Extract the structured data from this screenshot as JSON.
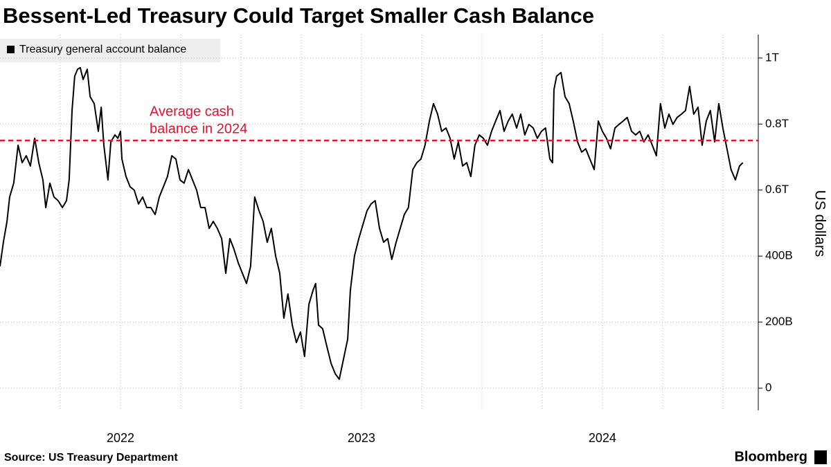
{
  "chart_data": {
    "type": "line",
    "title": "Bessent-Led Treasury Could Target Smaller Cash Balance",
    "source": "Source: US Treasury Department",
    "brand": "Bloomberg",
    "y_label": "US dollars",
    "xlim": [
      2022,
      2025.147
    ],
    "xticks": [
      {
        "value": 2022.5,
        "label": "2022"
      },
      {
        "value": 2023.5,
        "label": "2023"
      },
      {
        "value": 2024.5,
        "label": "2024"
      }
    ],
    "xgrid": [
      2022.25,
      2022.5,
      2022.75,
      2023,
      2023.25,
      2023.5,
      2023.75,
      2024,
      2024.25,
      2024.5,
      2024.75,
      2025
    ],
    "ylim": [
      -67,
      1071
    ],
    "yticks": [
      0,
      {
        "value": 200,
        "label": "200B"
      },
      {
        "value": 400,
        "label": "400B"
      },
      {
        "value": 600,
        "label": "0.6T"
      },
      {
        "value": 800,
        "label": "0.8T"
      },
      {
        "value": 1000,
        "label": "1T"
      }
    ],
    "grid": true,
    "reference": {
      "value": 750,
      "label": [
        "Average cash",
        "balance in 2024"
      ],
      "color": "#e8112d"
    },
    "x": [
      2022.0,
      2022.014,
      2022.029,
      2022.04,
      2022.057,
      2022.075,
      2022.092,
      2022.109,
      2022.126,
      2022.144,
      2022.161,
      2022.178,
      2022.19,
      2022.207,
      2022.224,
      2022.241,
      2022.259,
      2022.276,
      2022.287,
      2022.299,
      2022.31,
      2022.322,
      2022.333,
      2022.345,
      2022.362,
      2022.374,
      2022.391,
      2022.408,
      2022.42,
      2022.431,
      2022.448,
      2022.46,
      2022.477,
      2022.489,
      2022.5,
      2022.506,
      2022.523,
      2022.54,
      2022.557,
      2022.575,
      2022.592,
      2022.609,
      2022.626,
      2022.644,
      2022.661,
      2022.678,
      2022.695,
      2022.713,
      2022.73,
      2022.747,
      2022.764,
      2022.782,
      2022.799,
      2022.816,
      2022.833,
      2022.851,
      2022.868,
      2022.885,
      2022.902,
      2022.92,
      2022.937,
      2022.954,
      2022.971,
      2022.989,
      2023.006,
      2023.023,
      2023.04,
      2023.057,
      2023.075,
      2023.092,
      2023.109,
      2023.126,
      2023.144,
      2023.161,
      2023.178,
      2023.195,
      2023.213,
      2023.23,
      2023.247,
      2023.264,
      2023.282,
      2023.299,
      2023.31,
      2023.322,
      2023.339,
      2023.356,
      2023.374,
      2023.391,
      2023.408,
      2023.425,
      2023.443,
      2023.454,
      2023.471,
      2023.489,
      2023.506,
      2023.523,
      2023.54,
      2023.557,
      2023.575,
      2023.592,
      2023.609,
      2023.626,
      2023.644,
      2023.661,
      2023.678,
      2023.695,
      2023.713,
      2023.73,
      2023.747,
      2023.764,
      2023.782,
      2023.799,
      2023.816,
      2023.833,
      2023.851,
      2023.868,
      2023.885,
      2023.902,
      2023.92,
      2023.937,
      2023.954,
      2023.971,
      2023.989,
      2024.006,
      2024.023,
      2024.04,
      2024.057,
      2024.075,
      2024.092,
      2024.109,
      2024.126,
      2024.144,
      2024.161,
      2024.178,
      2024.195,
      2024.213,
      2024.23,
      2024.247,
      2024.264,
      2024.282,
      2024.293,
      2024.299,
      2024.31,
      2024.328,
      2024.345,
      2024.362,
      2024.379,
      2024.397,
      2024.414,
      2024.431,
      2024.448,
      2024.466,
      2024.483,
      2024.5,
      2024.517,
      2024.534,
      2024.552,
      2024.569,
      2024.586,
      2024.603,
      2024.621,
      2024.638,
      2024.655,
      2024.672,
      2024.69,
      2024.707,
      2024.724,
      2024.741,
      2024.759,
      2024.776,
      2024.793,
      2024.81,
      2024.828,
      2024.845,
      2024.862,
      2024.879,
      2024.897,
      2024.914,
      2024.931,
      2024.948,
      2024.966,
      2024.983,
      2025.0,
      2025.017,
      2025.034,
      2025.052,
      2025.069,
      2025.083
    ],
    "series": [
      {
        "name": "Treasury general account balance",
        "color": "#000000",
        "values": [
          369,
          442,
          505,
          579,
          621,
          736,
          683,
          704,
          673,
          757,
          683,
          631,
          547,
          621,
          579,
          568,
          547,
          568,
          631,
          841,
          945,
          966,
          971,
          935,
          966,
          883,
          862,
          778,
          851,
          736,
          631,
          746,
          767,
          757,
          778,
          694,
          641,
          610,
          600,
          558,
          579,
          547,
          547,
          526,
          579,
          610,
          641,
          704,
          694,
          631,
          621,
          662,
          631,
          600,
          547,
          547,
          484,
          505,
          484,
          453,
          348,
          453,
          421,
          379,
          348,
          317,
          369,
          579,
          537,
          505,
          442,
          484,
          400,
          348,
          212,
          285,
          191,
          138,
          170,
          96,
          254,
          296,
          317,
          191,
          180,
          128,
          75,
          44,
          27,
          86,
          149,
          296,
          400,
          453,
          495,
          537,
          558,
          568,
          484,
          442,
          453,
          390,
          442,
          484,
          526,
          547,
          662,
          683,
          694,
          736,
          809,
          862,
          830,
          778,
          788,
          757,
          694,
          746,
          673,
          683,
          641,
          736,
          767,
          757,
          736,
          778,
          809,
          841,
          778,
          809,
          830,
          788,
          830,
          767,
          799,
          788,
          757,
          778,
          788,
          694,
          683,
          904,
          945,
          956,
          883,
          862,
          809,
          746,
          715,
          725,
          694,
          662,
          809,
          778,
          757,
          725,
          788,
          799,
          809,
          820,
          778,
          767,
          778,
          746,
          767,
          736,
          704,
          862,
          788,
          830,
          799,
          820,
          830,
          841,
          914,
          830,
          851,
          736,
          809,
          841,
          746,
          862,
          788,
          725,
          662,
          631,
          673,
          683
        ]
      }
    ]
  }
}
